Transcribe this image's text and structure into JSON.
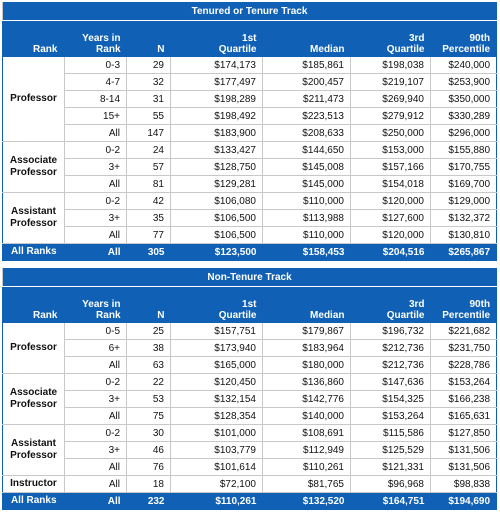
{
  "tables": [
    {
      "title": "Tenured or Tenure Track",
      "columns": [
        [
          "Rank"
        ],
        [
          "Years in",
          "Rank"
        ],
        [
          "N"
        ],
        [
          "1st",
          "Quartile"
        ],
        [
          "Median"
        ],
        [
          "3rd",
          "Quartile"
        ],
        [
          "90th",
          "Percentile"
        ]
      ],
      "groups": [
        {
          "rank": "Professor",
          "rows": [
            [
              "0-3",
              "29",
              "$174,173",
              "$185,861",
              "$198,038",
              "$240,000"
            ],
            [
              "4-7",
              "32",
              "$177,497",
              "$200,457",
              "$219,107",
              "$253,900"
            ],
            [
              "8-14",
              "31",
              "$198,289",
              "$211,473",
              "$269,940",
              "$350,000"
            ],
            [
              "15+",
              "55",
              "$198,492",
              "$223,513",
              "$279,912",
              "$330,289"
            ],
            [
              "All",
              "147",
              "$183,900",
              "$208,633",
              "$250,000",
              "$296,000"
            ]
          ]
        },
        {
          "rank": "Associate Professor",
          "rows": [
            [
              "0-2",
              "24",
              "$133,427",
              "$144,650",
              "$153,000",
              "$155,880"
            ],
            [
              "3+",
              "57",
              "$128,750",
              "$145,008",
              "$157,166",
              "$170,755"
            ],
            [
              "All",
              "81",
              "$129,281",
              "$145,000",
              "$154,018",
              "$169,700"
            ]
          ]
        },
        {
          "rank": "Assistant Professor",
          "rows": [
            [
              "0-2",
              "42",
              "$106,080",
              "$110,000",
              "$120,000",
              "$129,000"
            ],
            [
              "3+",
              "35",
              "$106,500",
              "$113,988",
              "$127,600",
              "$132,372"
            ],
            [
              "All",
              "77",
              "$106,500",
              "$110,000",
              "$120,000",
              "$130,810"
            ]
          ]
        }
      ],
      "total": {
        "rank": "All Ranks",
        "row": [
          "All",
          "305",
          "$123,500",
          "$158,453",
          "$204,516",
          "$265,867"
        ]
      }
    },
    {
      "title": "Non-Tenure Track",
      "columns": [
        [
          "Rank"
        ],
        [
          "Years in",
          "Rank"
        ],
        [
          "N"
        ],
        [
          "1st",
          "Quartile"
        ],
        [
          "Median"
        ],
        [
          "3rd",
          "Quartile"
        ],
        [
          "90th",
          "Percentile"
        ]
      ],
      "groups": [
        {
          "rank": "Professor",
          "rows": [
            [
              "0-5",
              "25",
              "$157,751",
              "$179,867",
              "$196,732",
              "$221,682"
            ],
            [
              "6+",
              "38",
              "$173,940",
              "$183,964",
              "$212,736",
              "$231,750"
            ],
            [
              "All",
              "63",
              "$165,000",
              "$180,000",
              "$212,736",
              "$228,786"
            ]
          ]
        },
        {
          "rank": "Associate Professor",
          "rows": [
            [
              "0-2",
              "22",
              "$120,450",
              "$136,860",
              "$147,636",
              "$153,264"
            ],
            [
              "3+",
              "53",
              "$132,154",
              "$142,776",
              "$154,325",
              "$166,238"
            ],
            [
              "All",
              "75",
              "$128,354",
              "$140,000",
              "$153,264",
              "$165,631"
            ]
          ]
        },
        {
          "rank": "Assistant Professor",
          "rows": [
            [
              "0-2",
              "30",
              "$101,000",
              "$108,691",
              "$115,586",
              "$127,850"
            ],
            [
              "3+",
              "46",
              "$103,779",
              "$112,949",
              "$125,529",
              "$131,506"
            ],
            [
              "All",
              "76",
              "$101,614",
              "$110,261",
              "$121,331",
              "$131,506"
            ]
          ]
        },
        {
          "rank": "Instructor",
          "rows": [
            [
              "All",
              "18",
              "$72,100",
              "$81,765",
              "$96,968",
              "$98,838"
            ]
          ]
        }
      ],
      "total": {
        "rank": "All Ranks",
        "row": [
          "All",
          "232",
          "$110,261",
          "$132,520",
          "$164,751",
          "$194,690"
        ]
      }
    }
  ]
}
